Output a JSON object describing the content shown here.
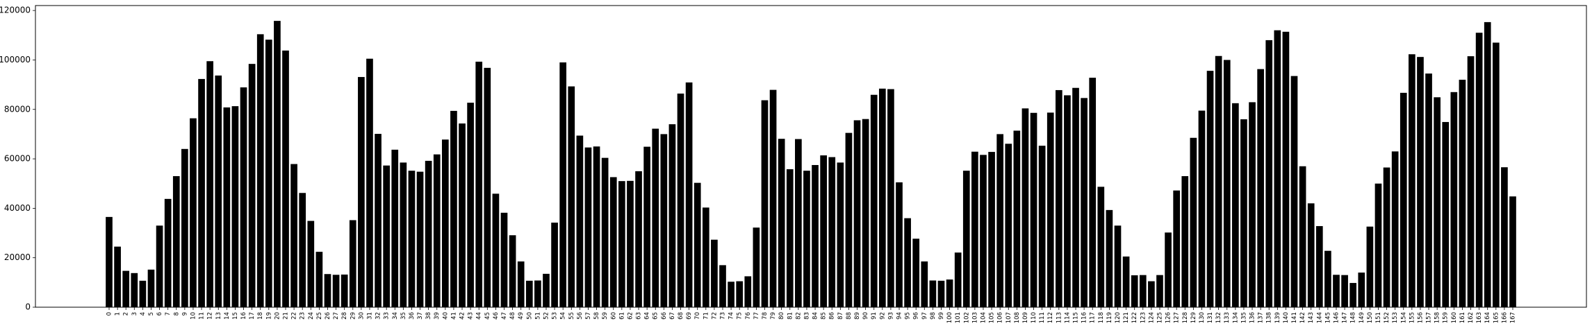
{
  "chart_data": {
    "type": "bar",
    "title": "",
    "xlabel": "",
    "ylabel": "",
    "ylim": [
      0,
      122000
    ],
    "yticks": [
      0,
      20000,
      40000,
      60000,
      80000,
      100000,
      120000
    ],
    "ytick_labels": [
      "0",
      "20000",
      "40000",
      "60000",
      "80000",
      "100000",
      "120000"
    ],
    "grid": false,
    "bar_color": "#000000",
    "categories": [
      "0",
      "1",
      "2",
      "3",
      "4",
      "5",
      "6",
      "7",
      "8",
      "9",
      "10",
      "11",
      "12",
      "13",
      "14",
      "15",
      "16",
      "17",
      "18",
      "19",
      "20",
      "21",
      "22",
      "23",
      "24",
      "25",
      "26",
      "27",
      "28",
      "29",
      "30",
      "31",
      "32",
      "33",
      "34",
      "35",
      "36",
      "37",
      "38",
      "39",
      "40",
      "41",
      "42",
      "43",
      "44",
      "45",
      "46",
      "47",
      "48",
      "49",
      "50",
      "51",
      "52",
      "53",
      "54",
      "55",
      "56",
      "57",
      "58",
      "59",
      "60",
      "61",
      "62",
      "63",
      "64",
      "65",
      "66",
      "67",
      "68",
      "69",
      "70",
      "71",
      "72",
      "73",
      "74",
      "75",
      "76",
      "77",
      "78",
      "79",
      "80",
      "81",
      "82",
      "83",
      "84",
      "85",
      "86",
      "87",
      "88",
      "89",
      "90",
      "91",
      "92",
      "93",
      "94",
      "95",
      "96",
      "97",
      "98",
      "99",
      "100",
      "101",
      "102",
      "103",
      "104",
      "105",
      "106",
      "107",
      "108",
      "109",
      "110",
      "111",
      "112",
      "113",
      "114",
      "115",
      "116",
      "117",
      "118",
      "119",
      "120",
      "121",
      "122",
      "123",
      "124",
      "125",
      "126",
      "127",
      "128",
      "129",
      "130",
      "131",
      "132",
      "133",
      "134",
      "135",
      "136",
      "137",
      "138",
      "139",
      "140",
      "141",
      "142",
      "143",
      "144",
      "145",
      "146",
      "147",
      "148",
      "149",
      "150",
      "151",
      "152",
      "153",
      "154",
      "155",
      "156",
      "157",
      "158",
      "159",
      "160",
      "161",
      "162",
      "163",
      "164",
      "165",
      "166",
      "167"
    ],
    "values": [
      36500,
      24500,
      14700,
      13800,
      10700,
      15200,
      33000,
      43800,
      53000,
      64000,
      76400,
      92300,
      99500,
      93700,
      80800,
      81300,
      88900,
      98400,
      110400,
      108200,
      115800,
      103800,
      57900,
      46200,
      34900,
      22400,
      13400,
      13100,
      13200,
      35200,
      93100,
      100500,
      70100,
      57300,
      63700,
      58500,
      55200,
      54800,
      59200,
      61800,
      67800,
      79400,
      74300,
      82700,
      99300,
      96800,
      45900,
      38200,
      29100,
      18500,
      10700,
      10800,
      13500,
      34200,
      99000,
      89300,
      69400,
      64600,
      65000,
      60400,
      52600,
      51000,
      51100,
      55000,
      64900,
      72200,
      70000,
      74000,
      86400,
      90900,
      50300,
      40300,
      27300,
      17000,
      10300,
      10500,
      12500,
      32200,
      83700,
      87900,
      68100,
      55800,
      68000,
      55200,
      57500,
      61400,
      60700,
      58500,
      70500,
      75600,
      76100,
      85900,
      88400,
      88200,
      50500,
      36000,
      27700,
      18500,
      10800,
      10700,
      11200,
      22100,
      55200,
      62900,
      61600,
      62800,
      70000,
      66100,
      71400,
      80400,
      78600,
      65300,
      78700,
      87800,
      85700,
      88700,
      84600,
      92800,
      48700,
      39300,
      33000,
      20500,
      12900,
      13000,
      10500,
      13000,
      30200,
      47200,
      53000,
      68500,
      79500,
      95600,
      101600,
      100000,
      82500,
      76000,
      82900,
      96300,
      108000,
      112000,
      111400,
      93500,
      57000,
      42000,
      32800,
      22800,
      13100,
      13000,
      9800,
      14000,
      32600,
      50000,
      56500,
      63000,
      86700,
      102300,
      101200,
      94500,
      84900,
      74900,
      87000,
      92000,
      101500,
      111000,
      115300,
      107000,
      56600,
      44800
    ]
  }
}
